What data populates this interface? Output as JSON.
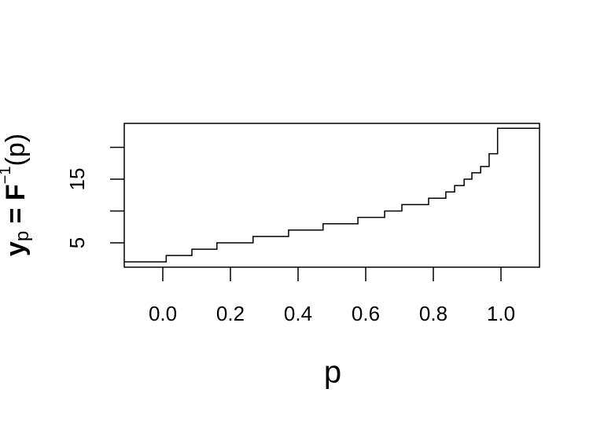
{
  "chart_data": {
    "type": "step",
    "x": [
      0,
      0.01,
      0.086,
      0.16,
      0.267,
      0.372,
      0.474,
      0.577,
      0.656,
      0.707,
      0.786,
      0.837,
      0.863,
      0.891,
      0.914,
      0.94,
      0.965,
      0.99
    ],
    "values": [
      2,
      3,
      4,
      5,
      6,
      7,
      8,
      9,
      10,
      11,
      12,
      13,
      14,
      15,
      16,
      17,
      19,
      23
    ],
    "color": "#000000",
    "xlabel": "p",
    "ylabel": {
      "base": "y",
      "sub": "p",
      "mid": " = F",
      "sup": "−1",
      "end": "(p)"
    },
    "xlim": [
      -0.114,
      1.114
    ],
    "xticks": [
      {
        "value": 0,
        "label": "0.0"
      },
      0.2,
      0.4,
      0.6,
      0.8,
      {
        "value": 1,
        "label": "1.0"
      }
    ],
    "ylim": [
      1.17,
      23.77
    ],
    "yticks": [
      5,
      {
        "value": 10,
        "label": null
      },
      15,
      {
        "value": 20,
        "label": null
      }
    ],
    "grid": false
  }
}
